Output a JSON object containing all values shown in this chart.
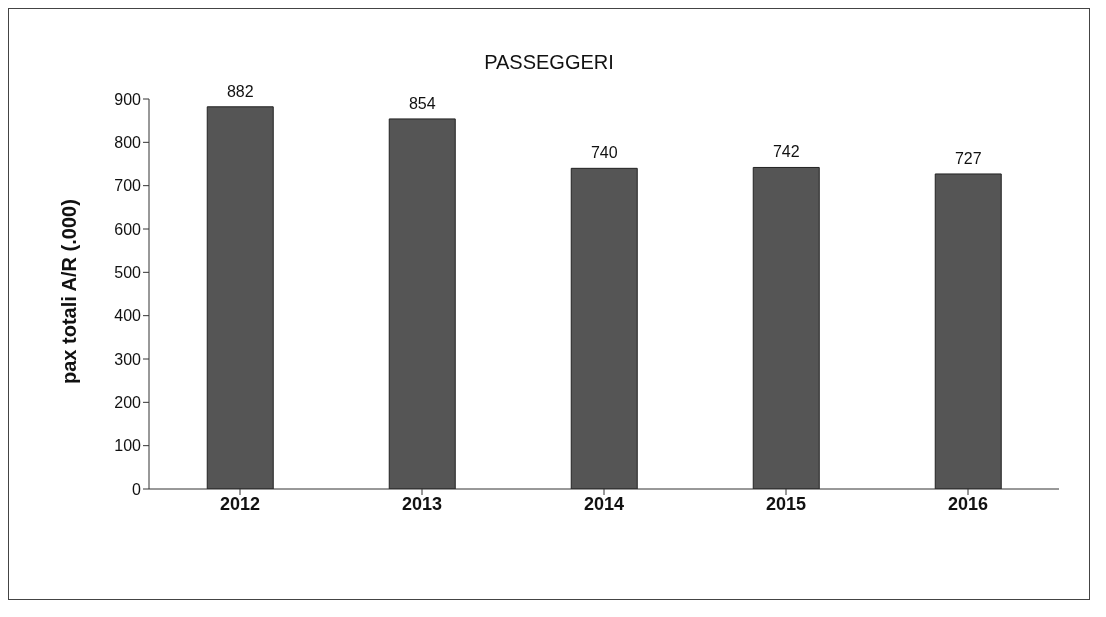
{
  "chart_data": {
    "type": "bar",
    "title": "PASSEGGERI",
    "ylabel": "pax totali A/R (.000)",
    "categories": [
      "2012",
      "2013",
      "2014",
      "2015",
      "2016"
    ],
    "values": [
      882,
      854,
      740,
      742,
      727
    ],
    "color": "#555555",
    "ylim": [
      0,
      900
    ],
    "yticks": [
      0,
      100,
      200,
      300,
      400,
      500,
      600,
      700,
      800,
      900
    ],
    "grid": false,
    "data_labels": true
  }
}
